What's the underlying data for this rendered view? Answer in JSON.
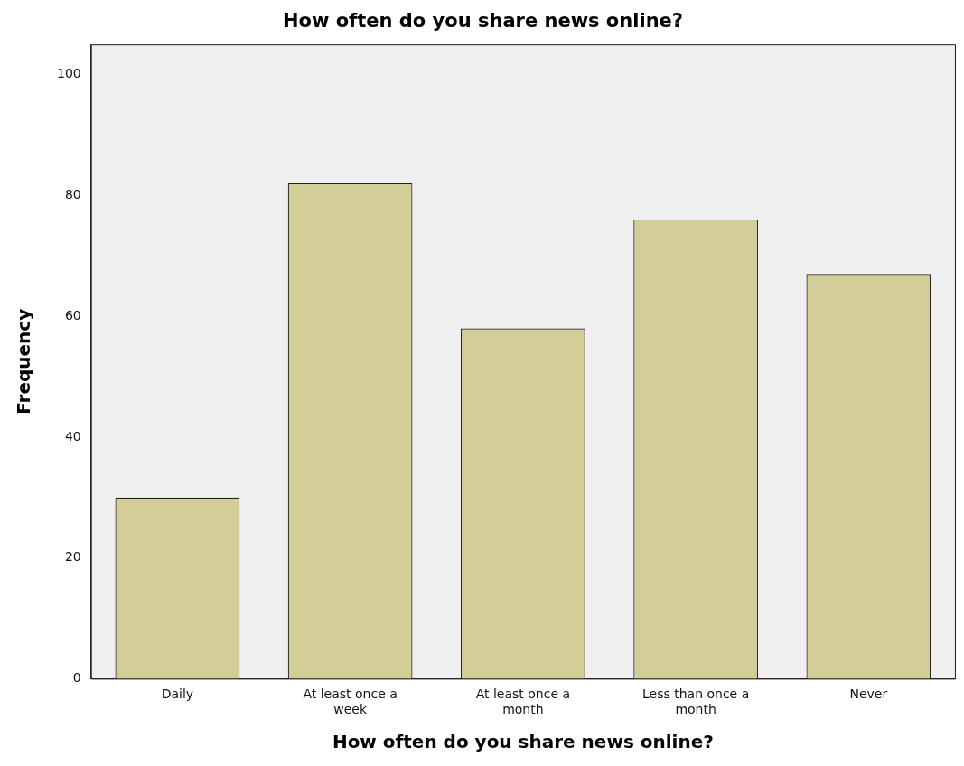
{
  "chart_data": {
    "type": "bar",
    "title": "How often do you share news online?",
    "xlabel": "How often do you share news online?",
    "ylabel": "Frequency",
    "categories": [
      "Daily",
      "At least once a week",
      "At least once a month",
      "Less than once a month",
      "Never"
    ],
    "values": [
      30,
      82,
      58,
      76,
      67
    ],
    "color": "#d3ce97",
    "ylim": [
      0,
      105
    ],
    "yticks": [
      0,
      20,
      40,
      60,
      80,
      100
    ]
  }
}
